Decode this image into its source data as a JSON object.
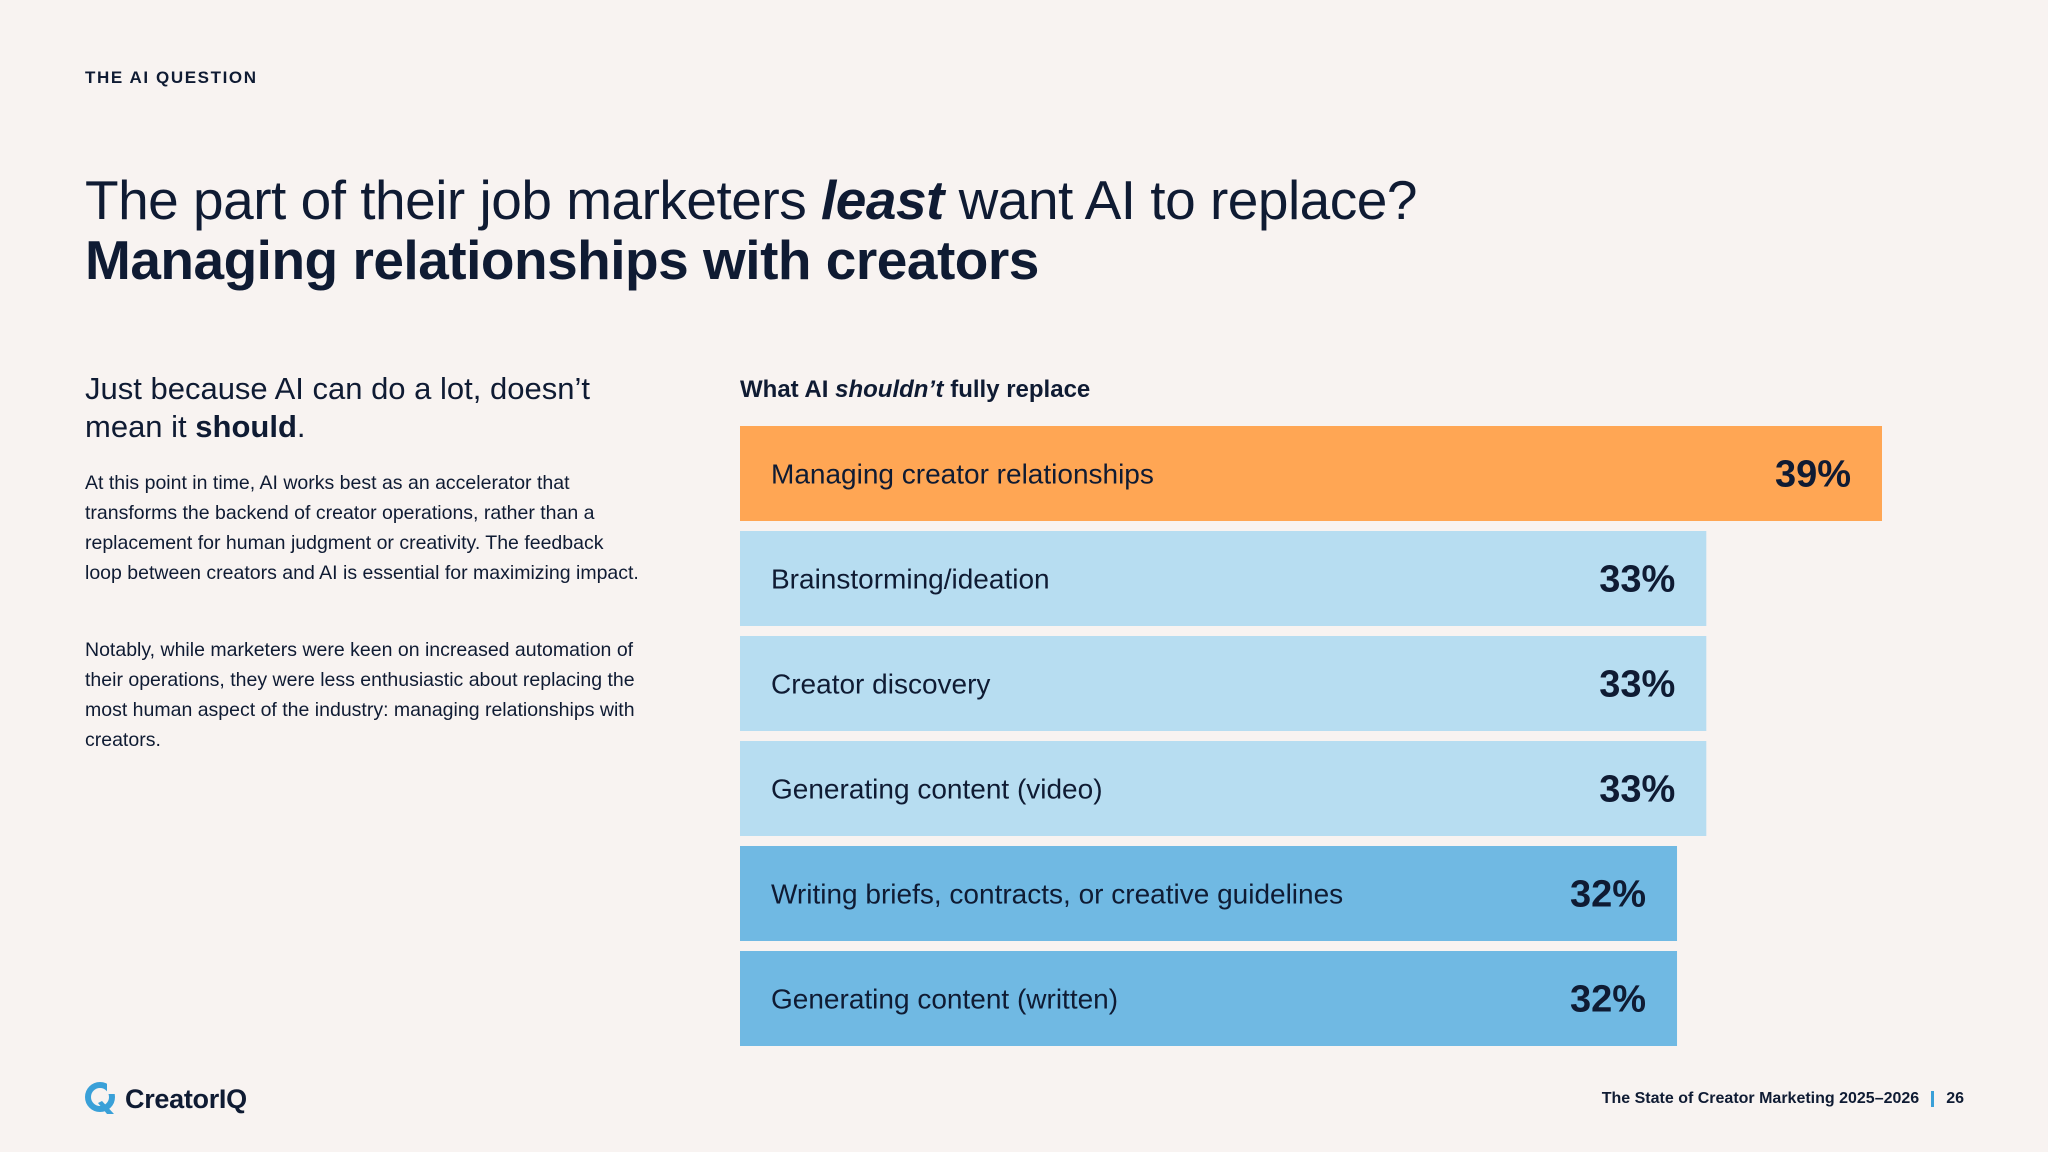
{
  "eyebrow": "THE AI QUESTION",
  "headline": {
    "part1": "The part of their job marketers ",
    "emphasis": "least",
    "part2": " want AI to replace?",
    "line2": "Managing relationships with creators"
  },
  "subhead": {
    "part1": "Just because AI can do a lot, doesn’t mean it ",
    "bold": "should",
    "part2": "."
  },
  "body": {
    "para1": "At this point in time, AI works best as an accelerator that transforms the backend of creator operations, rather than a replacement for human judgment or creativity. The feedback loop between creators and AI is essential for maximizing impact.",
    "para2": "Notably, while marketers were keen on increased automation of their operations, they were less enthusiastic about replacing the most human aspect of the industry: managing relationships with creators."
  },
  "chart_title": {
    "part1": "What AI ",
    "emphasis": "shouldn’t",
    "part2": " fully replace"
  },
  "chart_data": {
    "type": "bar",
    "orientation": "horizontal",
    "title": "What AI shouldn’t fully replace",
    "categories": [
      "Managing creator relationships",
      "Brainstorming/ideation",
      "Creator discovery",
      "Generating content (video)",
      "Writing briefs, contracts, or creative guidelines",
      "Generating content (written)"
    ],
    "values": [
      39,
      33,
      33,
      33,
      32,
      32
    ],
    "value_labels": [
      "39%",
      "33%",
      "33%",
      "33%",
      "32%",
      "32%"
    ],
    "colors": [
      "#ffa654",
      "#b7ddf1",
      "#b7ddf1",
      "#b7ddf1",
      "#70b9e3",
      "#70b9e3"
    ],
    "unit": "%"
  },
  "logo": {
    "text": "CreatorIQ",
    "icon": "creatoriq-logo-icon",
    "color": "#3aa0d8"
  },
  "footer": {
    "report": "The State of Creator Marketing 2025–2026",
    "page": "26"
  }
}
